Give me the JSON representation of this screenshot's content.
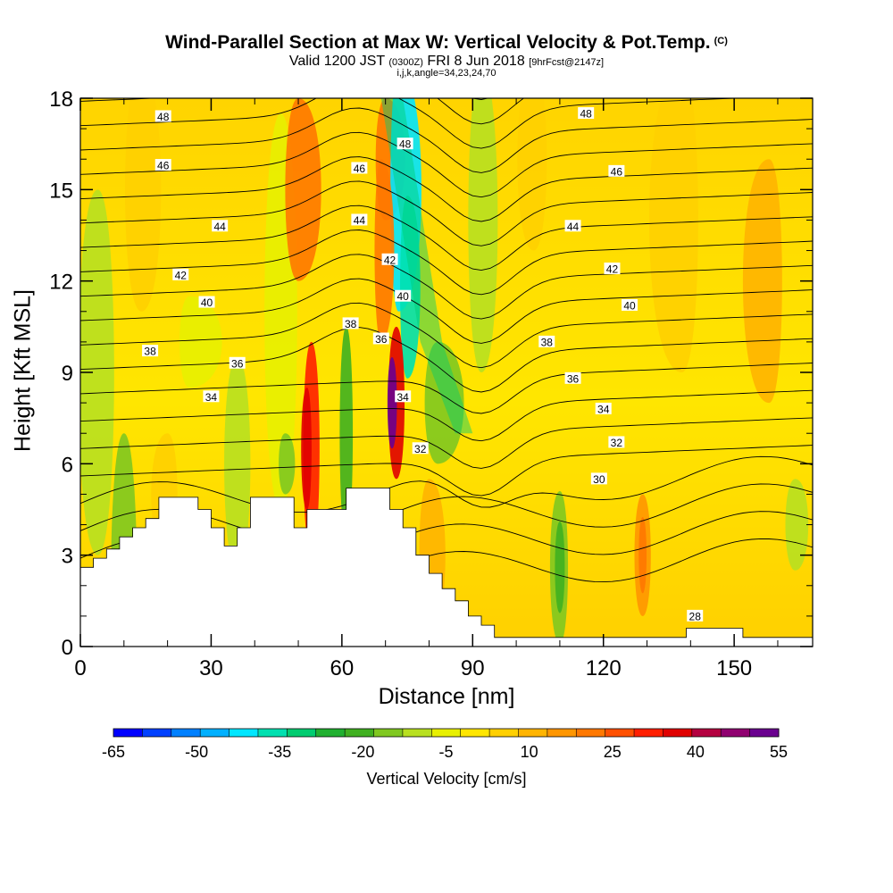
{
  "header": {
    "title": "Wind-Parallel Section at Max W: Vertical Velocity & Pot.Temp.",
    "title_mark": "(C)",
    "subtitle_a": "Valid 1200 JST",
    "subtitle_b": "(0300Z)",
    "subtitle_c": "FRI 8 Jun 2018",
    "subtitle_d": "[9hrFcst@2147z]",
    "subsub": "i,j,k,angle=34,23,24,70"
  },
  "chart_data": {
    "type": "heatmap",
    "title": "Wind-Parallel Section at Max W: Vertical Velocity & Pot.Temp.",
    "xlabel": "Distance [nm]",
    "ylabel": "Height [Kft MSL]",
    "xlim": [
      0,
      168
    ],
    "ylim": [
      0,
      18
    ],
    "x_ticks": [
      0,
      30,
      60,
      90,
      120,
      150
    ],
    "y_ticks": [
      0,
      3,
      6,
      9,
      12,
      15,
      18
    ],
    "colorbar": {
      "label": "Vertical Velocity [cm/s]",
      "tick_labels": [
        "-65",
        "-50",
        "-35",
        "-20",
        "-5",
        "10",
        "25",
        "40",
        "55"
      ],
      "colors": [
        "#0000ff",
        "#0040ff",
        "#0080ff",
        "#00b0ff",
        "#00e6ff",
        "#00e0b0",
        "#00cc70",
        "#20b030",
        "#40b020",
        "#80c820",
        "#b8e020",
        "#e8f000",
        "#ffe600",
        "#ffd000",
        "#ffb400",
        "#ff9600",
        "#ff7800",
        "#ff5000",
        "#ff1e00",
        "#e00000",
        "#b40040",
        "#900070",
        "#6a008f"
      ]
    },
    "contour_labels": [
      {
        "text": "48",
        "x": 19,
        "y": 17.4
      },
      {
        "text": "48",
        "x": 74.5,
        "y": 16.5
      },
      {
        "text": "48",
        "x": 116,
        "y": 17.5
      },
      {
        "text": "46",
        "x": 19,
        "y": 15.8
      },
      {
        "text": "46",
        "x": 64,
        "y": 15.7
      },
      {
        "text": "46",
        "x": 123,
        "y": 15.6
      },
      {
        "text": "44",
        "x": 32,
        "y": 13.8
      },
      {
        "text": "44",
        "x": 64,
        "y": 14.0
      },
      {
        "text": "44",
        "x": 113,
        "y": 13.8
      },
      {
        "text": "42",
        "x": 23,
        "y": 12.2
      },
      {
        "text": "42",
        "x": 71,
        "y": 12.7
      },
      {
        "text": "42",
        "x": 122,
        "y": 12.4
      },
      {
        "text": "40",
        "x": 29,
        "y": 11.3
      },
      {
        "text": "40",
        "x": 74,
        "y": 11.5
      },
      {
        "text": "40",
        "x": 126,
        "y": 11.2
      },
      {
        "text": "38",
        "x": 16,
        "y": 9.7
      },
      {
        "text": "38",
        "x": 62,
        "y": 10.6
      },
      {
        "text": "38",
        "x": 107,
        "y": 10.0
      },
      {
        "text": "36",
        "x": 36,
        "y": 9.3
      },
      {
        "text": "36",
        "x": 69,
        "y": 10.1
      },
      {
        "text": "36",
        "x": 113,
        "y": 8.8
      },
      {
        "text": "34",
        "x": 30,
        "y": 8.2
      },
      {
        "text": "34",
        "x": 74,
        "y": 8.2
      },
      {
        "text": "34",
        "x": 120,
        "y": 7.8
      },
      {
        "text": "32",
        "x": 78,
        "y": 6.5
      },
      {
        "text": "32",
        "x": 123,
        "y": 6.7
      },
      {
        "text": "30",
        "x": 119,
        "y": 5.5
      },
      {
        "text": "28",
        "x": 141,
        "y": 1.0
      }
    ]
  }
}
